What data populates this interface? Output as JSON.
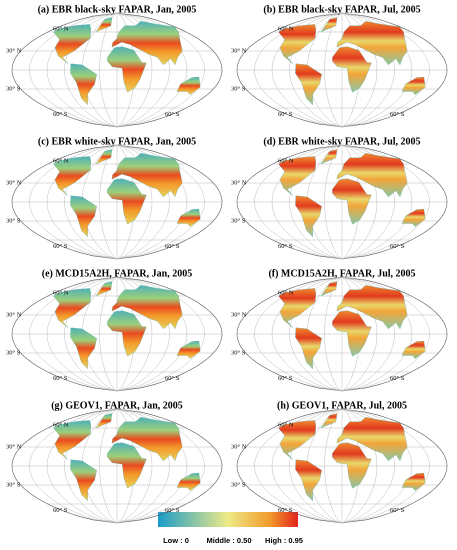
{
  "panels": [
    {
      "title": "(a) EBR black-sky FAPAR, Jan, 2005"
    },
    {
      "title": "(b) EBR black-sky FAPAR, Jul, 2005"
    },
    {
      "title": "(c) EBR white-sky FAPAR, Jan, 2005"
    },
    {
      "title": "(d) EBR white-sky FAPAR, Jul, 2005"
    },
    {
      "title": "(e) MCD15A2H, FAPAR, Jan, 2005"
    },
    {
      "title": "(f) MCD15A2H, FAPAR, Jul, 2005"
    },
    {
      "title": "(g) GEOV1, FAPAR, Jan, 2005"
    },
    {
      "title": "(h) GEOV1, FAPAR, Jul, 2005"
    }
  ],
  "grid_labels": [
    "60° N",
    "30° N",
    "30° S",
    "60° S"
  ],
  "colorbar": {
    "low": "Low : 0",
    "middle": "Middle : 0.50",
    "high": "High : 0.95"
  }
}
